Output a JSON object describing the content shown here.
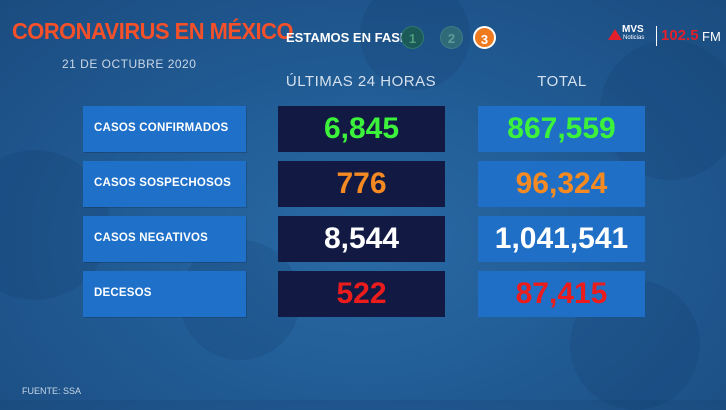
{
  "header": {
    "title": "CORONAVIRUS EN MÉXICO",
    "date": "21 DE OCTUBRE 2020",
    "phase_label": "ESTAMOS EN FASE:",
    "phases": [
      "1",
      "2",
      "3"
    ],
    "active_phase": "3"
  },
  "logo": {
    "brand": "MVS",
    "sub": "Noticias",
    "frequency": "102.5",
    "band": "FM"
  },
  "columns": {
    "last24": "ÚLTIMAS 24 HORAS",
    "total": "TOTAL"
  },
  "rows": [
    {
      "label": "CASOS CONFIRMADOS",
      "last24": "6,845",
      "total": "867,559",
      "color": "#3df23b"
    },
    {
      "label": "CASOS SOSPECHOSOS",
      "last24": "776",
      "total": "96,324",
      "color": "#f58a23"
    },
    {
      "label": "CASOS NEGATIVOS",
      "last24": "8,544",
      "total": "1,041,541",
      "color": "#ffffff"
    },
    {
      "label": "DECESOS",
      "last24": "522",
      "total": "87,415",
      "color": "#ec1c1c"
    }
  ],
  "footer": {
    "source": "FUENTE: SSA"
  }
}
